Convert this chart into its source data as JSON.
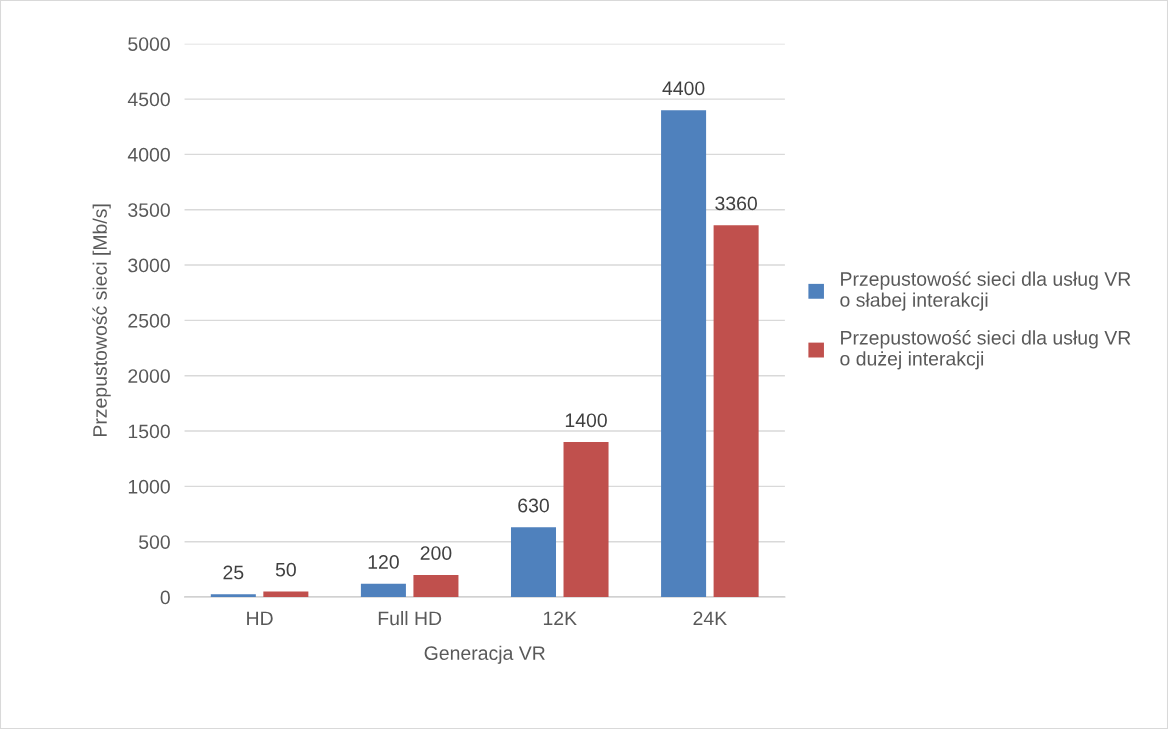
{
  "chart_data": {
    "type": "bar",
    "xlabel": "Generacja VR",
    "ylabel": "Przepustowość sieci [Mb/s]",
    "categories": [
      "HD",
      "Full HD",
      "12K",
      "24K"
    ],
    "series": [
      {
        "name": "Przepustowość sieci dla usług VR\no słabej interakcji",
        "color": "#4f81bd",
        "values": [
          25,
          120,
          630,
          4400
        ]
      },
      {
        "name": "Przepustowość sieci dla usług VR\no dużej interakcji",
        "color": "#c0504d",
        "values": [
          50,
          200,
          1400,
          3360
        ]
      }
    ],
    "ylim": [
      0,
      5000
    ],
    "yticks": [
      0,
      500,
      1000,
      1500,
      2000,
      2500,
      3000,
      3500,
      4000,
      4500,
      5000
    ],
    "grid": "y",
    "legend": "right",
    "data_labels": true
  }
}
